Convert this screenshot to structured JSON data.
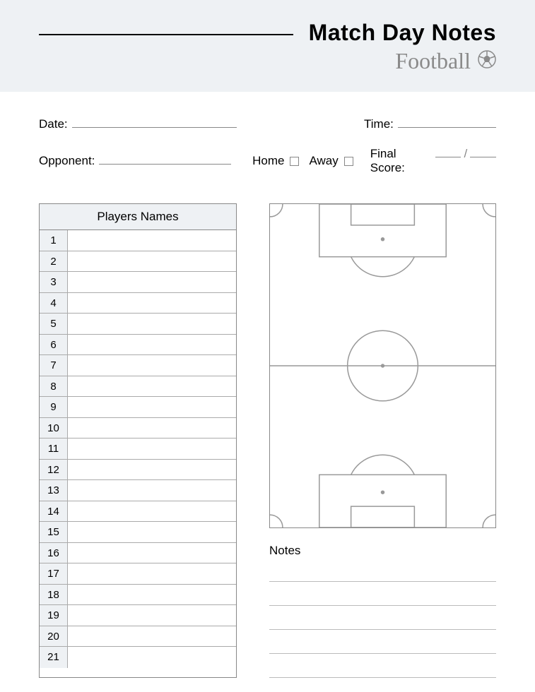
{
  "header": {
    "title": "Match Day Notes",
    "subtitle": "Football"
  },
  "fields": {
    "date_label": "Date:",
    "time_label": "Time:",
    "opponent_label": "Opponent:",
    "home_label": "Home",
    "away_label": "Away",
    "final_score_label": "Final Score:"
  },
  "players": {
    "header": "Players Names",
    "count": 21,
    "numbers": [
      "1",
      "2",
      "3",
      "4",
      "5",
      "6",
      "7",
      "8",
      "9",
      "10",
      "11",
      "12",
      "13",
      "14",
      "15",
      "16",
      "17",
      "18",
      "19",
      "20",
      "21"
    ]
  },
  "notes": {
    "label": "Notes",
    "line_count": 5
  },
  "colors": {
    "band_bg": "#eef1f4",
    "line": "#888888",
    "subtitle": "#8a8a8a"
  },
  "pitch": {
    "stroke": "#999999",
    "stroke_width": 1.5
  }
}
